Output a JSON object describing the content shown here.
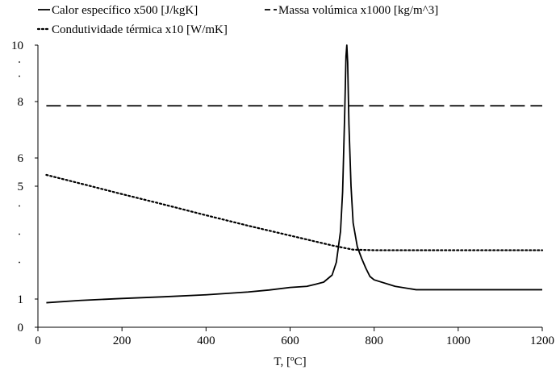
{
  "chart_data": {
    "type": "line",
    "xlabel": "T, [ºC]",
    "ylabel": "",
    "xlim": [
      0,
      1200
    ],
    "ylim": [
      0,
      10
    ],
    "x_ticks": [
      0,
      200,
      400,
      600,
      800,
      1000,
      1200
    ],
    "x_tick_labels": [
      "0",
      "200",
      "400",
      "600",
      "800",
      "1000",
      "1200"
    ],
    "y_ticks": [
      0,
      1,
      5,
      6,
      8,
      10
    ],
    "y_tick_labels": [
      "0",
      "1",
      "5",
      "6",
      "8",
      "10"
    ],
    "y_dot_marks": [
      2.3,
      3.3,
      4.3,
      8.9,
      9.4
    ],
    "grid": false,
    "legend_position": "top",
    "series": [
      {
        "name": "Calor específico x500 [J/kgK]",
        "style": "solid",
        "color": "#000000",
        "x": [
          20,
          100,
          200,
          300,
          400,
          500,
          550,
          600,
          640,
          660,
          680,
          700,
          710,
          720,
          725,
          730,
          733,
          735,
          737,
          740,
          745,
          750,
          760,
          770,
          780,
          790,
          800,
          850,
          900,
          1000,
          1100,
          1200
        ],
        "y": [
          0.87,
          0.95,
          1.02,
          1.08,
          1.15,
          1.25,
          1.32,
          1.41,
          1.45,
          1.52,
          1.6,
          1.85,
          2.3,
          3.4,
          4.8,
          7.6,
          9.6,
          10.0,
          9.4,
          7.2,
          5.0,
          3.7,
          2.85,
          2.45,
          2.1,
          1.8,
          1.68,
          1.45,
          1.33,
          1.33,
          1.33,
          1.33
        ]
      },
      {
        "name": "Massa volúmica x1000 [kg/m^3]",
        "style": "dashed",
        "color": "#000000",
        "x": [
          20,
          1200
        ],
        "y": [
          7.85,
          7.85
        ]
      },
      {
        "name": "Condutividade térmica x10 [W/mK]",
        "style": "dotted",
        "color": "#000000",
        "x": [
          20,
          100,
          200,
          300,
          400,
          500,
          600,
          700,
          750,
          800,
          1200
        ],
        "y": [
          5.4,
          5.1,
          4.72,
          4.35,
          3.97,
          3.6,
          3.25,
          2.9,
          2.75,
          2.73,
          2.73
        ]
      }
    ]
  }
}
